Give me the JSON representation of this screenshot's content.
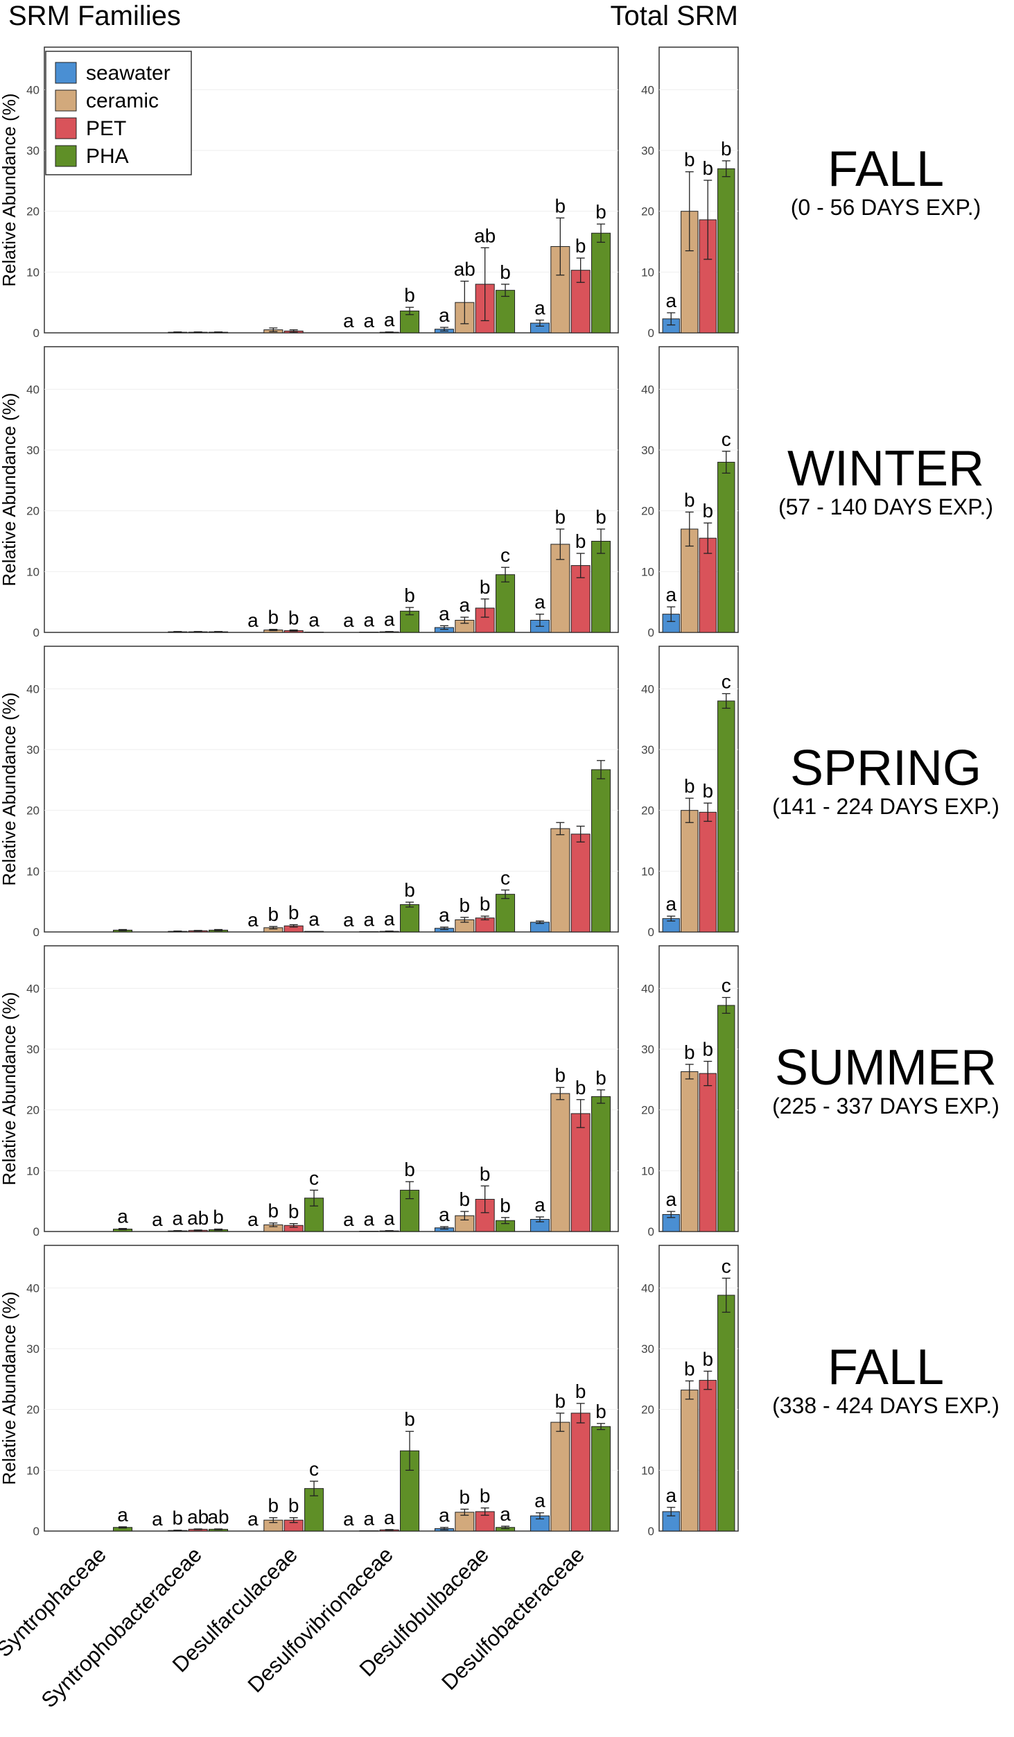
{
  "header": {
    "left_title": "SRM Families",
    "right_title": "Total SRM"
  },
  "legend": [
    {
      "name": "seawater",
      "color": "#4a8fd3"
    },
    {
      "name": "ceramic",
      "color": "#d2a97c"
    },
    {
      "name": "PET",
      "color": "#d9535a"
    },
    {
      "name": "PHA",
      "color": "#5f8f27"
    }
  ],
  "chart_data": {
    "type": "bar",
    "title": "SRM Families / Total SRM",
    "ylabel": "Relative Abundance (%)",
    "ylim": [
      0,
      47
    ],
    "yticks": [
      0,
      10,
      20,
      30,
      40
    ],
    "categories": [
      "Syntrophaceae",
      "Syntrophobacteraceae",
      "Desulfarculaceae",
      "Desulfovibrionaceae",
      "Desulfobulbaceae",
      "Desulfobacteraceae"
    ],
    "series_names": [
      "seawater",
      "ceramic",
      "PET",
      "PHA"
    ],
    "panels": [
      {
        "season": "FALL",
        "period": "(0 - 56 DAYS EXP.)",
        "families": {
          "values": [
            [
              0,
              0,
              0,
              0
            ],
            [
              0,
              0.1,
              0.1,
              0.1
            ],
            [
              0,
              0.5,
              0.3,
              0
            ],
            [
              0,
              0,
              0.1,
              3.6
            ],
            [
              0.6,
              5.0,
              8.0,
              7.0
            ],
            [
              1.6,
              14.2,
              10.3,
              16.4
            ]
          ],
          "errors": [
            [
              0,
              0,
              0,
              0
            ],
            [
              0,
              0.05,
              0.05,
              0.05
            ],
            [
              0,
              0.3,
              0.2,
              0
            ],
            [
              0,
              0,
              0.05,
              0.6
            ],
            [
              0.3,
              3.5,
              6.0,
              1.0
            ],
            [
              0.5,
              4.7,
              2.0,
              1.5
            ]
          ],
          "labels": [
            [
              "",
              "",
              "",
              ""
            ],
            [
              "",
              "",
              "",
              ""
            ],
            [
              "",
              "",
              "",
              ""
            ],
            [
              "a",
              "a",
              "a",
              "b"
            ],
            [
              "a",
              "ab",
              "ab",
              "b"
            ],
            [
              "a",
              "b",
              "b",
              "b"
            ]
          ]
        },
        "total": {
          "values": [
            2.3,
            20.0,
            18.6,
            27.0
          ],
          "errors": [
            1.0,
            6.5,
            6.5,
            1.3
          ],
          "labels": [
            "a",
            "b",
            "b",
            "b"
          ]
        }
      },
      {
        "season": "WINTER",
        "period": "(57 - 140 DAYS EXP.)",
        "families": {
          "values": [
            [
              0,
              0,
              0,
              0
            ],
            [
              0,
              0.1,
              0.1,
              0.1
            ],
            [
              0,
              0.4,
              0.3,
              0.05
            ],
            [
              0,
              0.05,
              0.1,
              3.5
            ],
            [
              0.8,
              2.0,
              4.0,
              9.5
            ],
            [
              2.0,
              14.5,
              11.0,
              15.0
            ]
          ],
          "errors": [
            [
              0,
              0,
              0,
              0
            ],
            [
              0,
              0.05,
              0.05,
              0.05
            ],
            [
              0,
              0.1,
              0.1,
              0
            ],
            [
              0,
              0,
              0.05,
              0.6
            ],
            [
              0.3,
              0.5,
              1.5,
              1.2
            ],
            [
              1.0,
              2.5,
              2.0,
              2.0
            ]
          ],
          "labels": [
            [
              "",
              "",
              "",
              ""
            ],
            [
              "",
              "",
              "",
              ""
            ],
            [
              "a",
              "b",
              "b",
              "a"
            ],
            [
              "a",
              "a",
              "a",
              "b"
            ],
            [
              "a",
              "a",
              "b",
              "c"
            ],
            [
              "a",
              "b",
              "b",
              "b"
            ]
          ]
        },
        "total": {
          "values": [
            3.0,
            17.0,
            15.5,
            28.0
          ],
          "errors": [
            1.2,
            2.8,
            2.5,
            1.8
          ],
          "labels": [
            "a",
            "b",
            "b",
            "c"
          ]
        }
      },
      {
        "season": "SPRING",
        "period": "(141 - 224 DAYS EXP.)",
        "families": {
          "values": [
            [
              0,
              0,
              0,
              0.3
            ],
            [
              0,
              0.1,
              0.2,
              0.3
            ],
            [
              0,
              0.7,
              1.0,
              0.1
            ],
            [
              0,
              0.05,
              0.1,
              4.5
            ],
            [
              0.6,
              2.0,
              2.3,
              6.2
            ],
            [
              1.6,
              17.0,
              16.1,
              26.7
            ]
          ],
          "errors": [
            [
              0,
              0,
              0,
              0.1
            ],
            [
              0,
              0.05,
              0.05,
              0.1
            ],
            [
              0,
              0.2,
              0.2,
              0
            ],
            [
              0,
              0,
              0.05,
              0.4
            ],
            [
              0.2,
              0.4,
              0.3,
              0.7
            ],
            [
              0.2,
              1.0,
              1.3,
              1.5
            ]
          ],
          "labels": [
            [
              "",
              "",
              "",
              ""
            ],
            [
              "",
              "",
              "",
              ""
            ],
            [
              "a",
              "b",
              "b",
              "a"
            ],
            [
              "a",
              "a",
              "a",
              "b"
            ],
            [
              "a",
              "b",
              "b",
              "c"
            ],
            [
              "",
              "",
              "",
              ""
            ]
          ]
        },
        "total": {
          "values": [
            2.2,
            20.0,
            19.7,
            38.0
          ],
          "errors": [
            0.4,
            2.0,
            1.5,
            1.2
          ],
          "labels": [
            "a",
            "b",
            "b",
            "c"
          ]
        }
      },
      {
        "season": "SUMMER",
        "period": "(225 - 337 DAYS EXP.)",
        "families": {
          "values": [
            [
              0,
              0,
              0,
              0.4
            ],
            [
              0,
              0.1,
              0.2,
              0.3
            ],
            [
              0,
              1.1,
              1.0,
              5.5
            ],
            [
              0,
              0.05,
              0.1,
              6.8
            ],
            [
              0.6,
              2.6,
              5.3,
              1.8
            ],
            [
              2.0,
              22.7,
              19.4,
              22.2
            ]
          ],
          "errors": [
            [
              0,
              0,
              0,
              0.1
            ],
            [
              0,
              0.05,
              0.05,
              0.1
            ],
            [
              0,
              0.3,
              0.3,
              1.3
            ],
            [
              0,
              0,
              0.05,
              1.4
            ],
            [
              0.2,
              0.7,
              2.2,
              0.5
            ],
            [
              0.4,
              1.0,
              2.3,
              1.1
            ]
          ],
          "labels": [
            [
              "",
              "",
              "",
              "a"
            ],
            [
              "a",
              "a",
              "ab",
              "b"
            ],
            [
              "a",
              "b",
              "b",
              "c"
            ],
            [
              "a",
              "a",
              "a",
              "b"
            ],
            [
              "a",
              "b",
              "b",
              "b"
            ],
            [
              "a",
              "b",
              "b",
              "b"
            ]
          ]
        },
        "total": {
          "values": [
            2.8,
            26.3,
            26.0,
            37.2
          ],
          "errors": [
            0.5,
            1.2,
            2.0,
            1.3
          ],
          "labels": [
            "a",
            "b",
            "b",
            "c"
          ]
        }
      },
      {
        "season": "FALL",
        "period": "(338 - 424 DAYS EXP.)",
        "families": {
          "values": [
            [
              0,
              0,
              0,
              0.6
            ],
            [
              0,
              0.1,
              0.3,
              0.3
            ],
            [
              0,
              1.8,
              1.8,
              7.0
            ],
            [
              0,
              0.05,
              0.2,
              13.2
            ],
            [
              0.4,
              3.1,
              3.2,
              0.6
            ],
            [
              2.5,
              17.9,
              19.4,
              17.2
            ]
          ],
          "errors": [
            [
              0,
              0,
              0,
              0.1
            ],
            [
              0,
              0.05,
              0.05,
              0.05
            ],
            [
              0,
              0.4,
              0.4,
              1.2
            ],
            [
              0,
              0,
              0.05,
              3.2
            ],
            [
              0.2,
              0.5,
              0.6,
              0.2
            ],
            [
              0.5,
              1.5,
              1.6,
              0.5
            ]
          ],
          "labels": [
            [
              "",
              "",
              "",
              "a"
            ],
            [
              "a",
              "b",
              "ab",
              "ab"
            ],
            [
              "a",
              "b",
              "b",
              "c"
            ],
            [
              "a",
              "a",
              "a",
              "b"
            ],
            [
              "a",
              "b",
              "b",
              "a"
            ],
            [
              "a",
              "b",
              "b",
              "b"
            ]
          ]
        },
        "total": {
          "values": [
            3.2,
            23.2,
            24.8,
            38.8
          ],
          "errors": [
            0.7,
            1.5,
            1.5,
            2.8
          ],
          "labels": [
            "a",
            "b",
            "b",
            "c"
          ]
        }
      }
    ]
  }
}
